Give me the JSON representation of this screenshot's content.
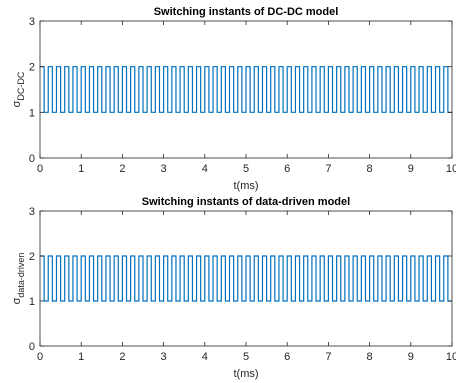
{
  "chart_data": [
    {
      "type": "line",
      "title": "Switching instants of DC-DC model",
      "xlabel": "t(ms)",
      "ylabel_symbol": "σ",
      "ylabel_subscript": "DC-DC",
      "xlim": [
        0,
        10
      ],
      "ylim": [
        0,
        3
      ],
      "xticks": [
        "0",
        "1",
        "2",
        "3",
        "4",
        "5",
        "6",
        "7",
        "8",
        "9",
        "10"
      ],
      "yticks": [
        "0",
        "1",
        "2",
        "3"
      ],
      "series": [
        {
          "style": "square-wave",
          "color": "#0072BD",
          "low": 1,
          "high": 2,
          "period_ms": 0.2,
          "duty": 0.5,
          "start_level": 2,
          "x_start": 0,
          "x_end": 10
        }
      ]
    },
    {
      "type": "line",
      "title": "Switching instants of data-driven model",
      "xlabel": "t(ms)",
      "ylabel_symbol": "σ",
      "ylabel_subscript": "data-driven",
      "xlim": [
        0,
        10
      ],
      "ylim": [
        0,
        3
      ],
      "xticks": [
        "0",
        "1",
        "2",
        "3",
        "4",
        "5",
        "6",
        "7",
        "8",
        "9",
        "10"
      ],
      "yticks": [
        "0",
        "1",
        "2",
        "3"
      ],
      "series": [
        {
          "style": "square-wave",
          "color": "#0072BD",
          "low": 1,
          "high": 2,
          "period_ms": 0.2,
          "duty": 0.5,
          "start_level": 2,
          "x_start": 0,
          "x_end": 10
        }
      ]
    }
  ]
}
